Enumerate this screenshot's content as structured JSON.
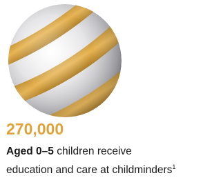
{
  "figure": {
    "number": "270,000",
    "description": {
      "bold": "Aged 0–5",
      "line1": "children receive",
      "line2": "education and care at childminders",
      "footnote": "1"
    }
  }
}
